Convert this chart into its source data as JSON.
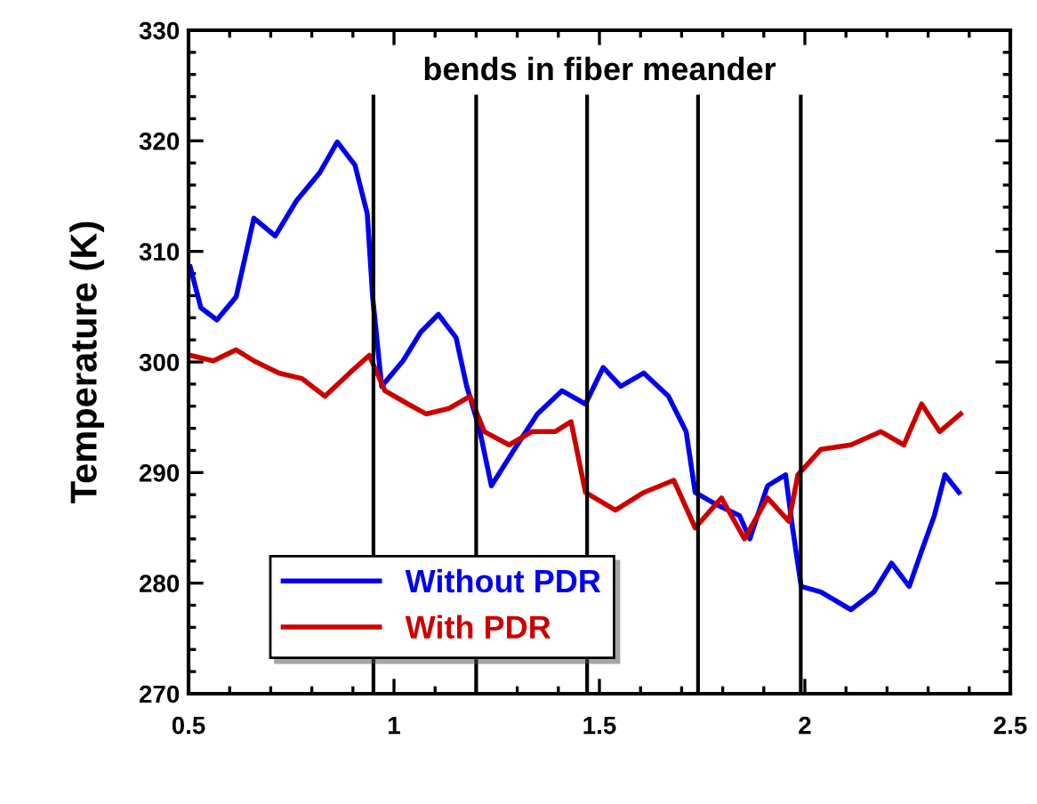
{
  "chart_data": {
    "type": "line",
    "ylabel": "Temperature (K)",
    "annotations": [
      "bends in fiber meander"
    ],
    "xlim": [
      0.5,
      2.5
    ],
    "xticks": [
      0.5,
      1,
      1.5,
      2,
      2.5
    ],
    "ylim": [
      270,
      330
    ],
    "yticks": [
      270,
      280,
      290,
      300,
      310,
      320,
      330
    ],
    "grid": false,
    "legend": "bottom left",
    "line_style": "solid",
    "marker": "none",
    "ref_lines": [
      {
        "axis": "x",
        "value": 0.95,
        "color": "#000000"
      },
      {
        "axis": "x",
        "value": 1.2,
        "color": "#000000"
      },
      {
        "axis": "x",
        "value": 1.47,
        "color": "#000000"
      },
      {
        "axis": "x",
        "value": 1.74,
        "color": "#000000"
      },
      {
        "axis": "x",
        "value": 1.99,
        "color": "#000000"
      }
    ],
    "series": [
      {
        "name": "Without PDR",
        "color": "#0000ee",
        "x": [
          0.504,
          0.53,
          0.569,
          0.616,
          0.659,
          0.711,
          0.763,
          0.819,
          0.862,
          0.905,
          0.935,
          0.948,
          0.97,
          1.022,
          1.065,
          1.108,
          1.151,
          1.177,
          1.207,
          1.237,
          1.293,
          1.349,
          1.409,
          1.466,
          1.509,
          1.552,
          1.608,
          1.668,
          1.711,
          1.733,
          1.78,
          1.841,
          1.866,
          1.909,
          1.953,
          1.97,
          1.991,
          2.039,
          2.112,
          2.168,
          2.211,
          2.254,
          2.284,
          2.315,
          2.341,
          2.375
        ],
        "values": [
          308.6,
          304.9,
          303.8,
          305.9,
          313.0,
          311.4,
          314.6,
          317.1,
          319.9,
          317.8,
          313.4,
          305.9,
          297.8,
          300.1,
          302.7,
          304.3,
          302.2,
          297.8,
          294.1,
          288.8,
          292.1,
          295.3,
          297.4,
          296.2,
          299.5,
          297.8,
          299.0,
          296.9,
          293.7,
          288.2,
          287.2,
          286.1,
          284.0,
          288.8,
          289.8,
          285.0,
          279.7,
          279.2,
          277.6,
          279.2,
          281.8,
          279.7,
          282.9,
          286.1,
          289.8,
          288.2
        ]
      },
      {
        "name": "With PDR",
        "color": "#cc0000",
        "x": [
          0.504,
          0.56,
          0.616,
          0.659,
          0.72,
          0.776,
          0.832,
          0.892,
          0.94,
          0.978,
          1.034,
          1.078,
          1.134,
          1.185,
          1.22,
          1.28,
          1.336,
          1.392,
          1.431,
          1.466,
          1.539,
          1.608,
          1.681,
          1.733,
          1.797,
          1.853,
          1.909,
          1.961,
          1.983,
          2.039,
          2.112,
          2.185,
          2.241,
          2.284,
          2.328,
          2.379
        ],
        "values": [
          300.6,
          300.1,
          301.1,
          300.1,
          299.0,
          298.5,
          296.9,
          299.0,
          300.6,
          297.4,
          296.2,
          295.3,
          295.8,
          296.9,
          293.7,
          292.5,
          293.7,
          293.7,
          294.6,
          288.2,
          286.6,
          288.2,
          289.3,
          285.0,
          287.7,
          284.0,
          287.7,
          285.6,
          289.8,
          292.1,
          292.5,
          293.7,
          292.5,
          296.2,
          293.7,
          295.3
        ]
      }
    ]
  }
}
